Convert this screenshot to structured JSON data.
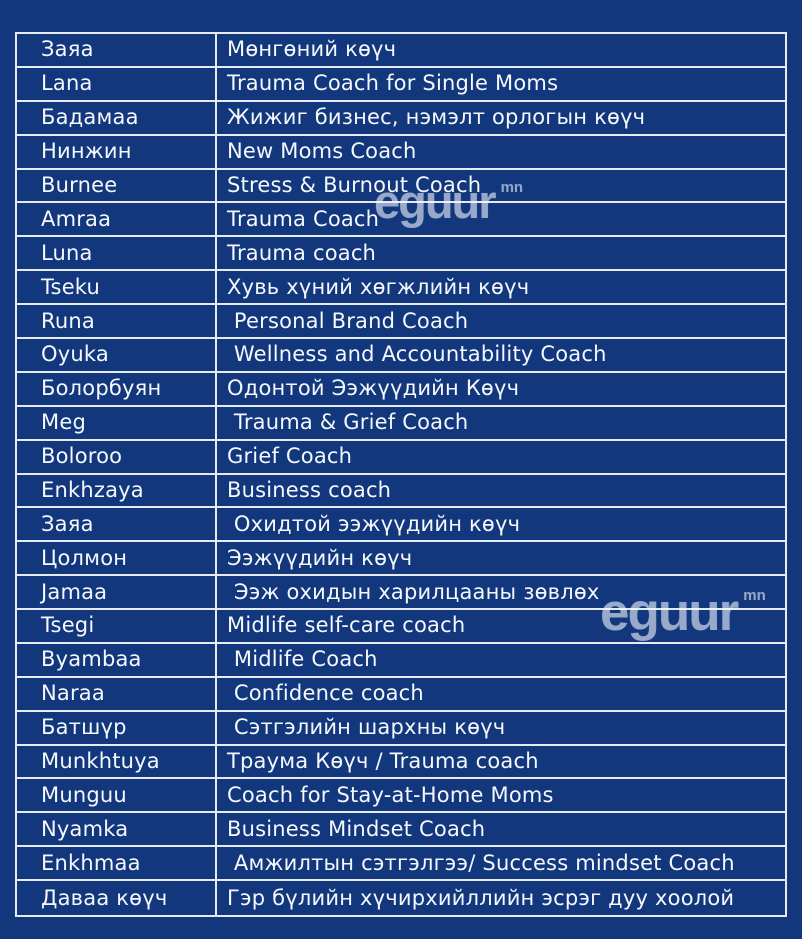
{
  "page": {
    "background_color": "#12377D",
    "grid_line_color": "#F0F4FA",
    "text_color": "#F5F8FC"
  },
  "watermark": {
    "text": "eguur",
    "suffix": "mn"
  },
  "table": {
    "rows": [
      {
        "name": "Заяа",
        "title": "Мөнгөний көүч"
      },
      {
        "name": "Lana",
        "title": "Trauma Coach for Single Moms"
      },
      {
        "name": "Бадамаа",
        "title": "Жижиг бизнес, нэмэлт орлогын көүч"
      },
      {
        "name": "Нинжин",
        "title": "New Moms Coach"
      },
      {
        "name": "Burnee",
        "title": "Stress & Burnout Coach"
      },
      {
        "name": "Amraa",
        "title": "Trauma Coach"
      },
      {
        "name": "Luna",
        "title": "Trauma coach"
      },
      {
        "name": "Tseku",
        "title": "Хувь хүний хөгжлийн көүч"
      },
      {
        "name": "Runa",
        "title": " Personal Brand Coach"
      },
      {
        "name": "Oyuka",
        "title": " Wellness and Accountability Coach"
      },
      {
        "name": "Болорбуян",
        "title": "Одонтой Ээжүүдийн Көүч"
      },
      {
        "name": "Meg",
        "title": " Trauma & Grief Coach"
      },
      {
        "name": "Boloroo",
        "title": "Grief Coach"
      },
      {
        "name": "Enkhzaya",
        "title": "Business coach"
      },
      {
        "name": "Заяа",
        "title": " Охидтой ээжүүдийн көүч"
      },
      {
        "name": "Цолмон",
        "title": "Ээжүүдийн көүч"
      },
      {
        "name": "Jamaa",
        "title": " Ээж охидын харилцааны зөвлөх"
      },
      {
        "name": "Tsegi",
        "title": "Midlife self-care coach"
      },
      {
        "name": "Byambaa",
        "title": " Midlife Coach"
      },
      {
        "name": "Naraa",
        "title": " Confidence coach"
      },
      {
        "name": "Батшүр",
        "title": " Сэтгэлийн шархны көүч"
      },
      {
        "name": "Munkhtuya",
        "title": "Траума Көүч / Trauma coach"
      },
      {
        "name": "Munguu",
        "title": "Coach for Stay-at-Home Moms"
      },
      {
        "name": "Nyamka",
        "title": "Business Mindset Coach"
      },
      {
        "name": "Enkhmaa",
        "title": " Амжилтын сэтгэлгээ/ Success mindset Coach"
      },
      {
        "name": "Даваа көүч",
        "title": "Гэр бүлийн хүчирхийллийн эсрэг дуу хоолой"
      }
    ]
  }
}
